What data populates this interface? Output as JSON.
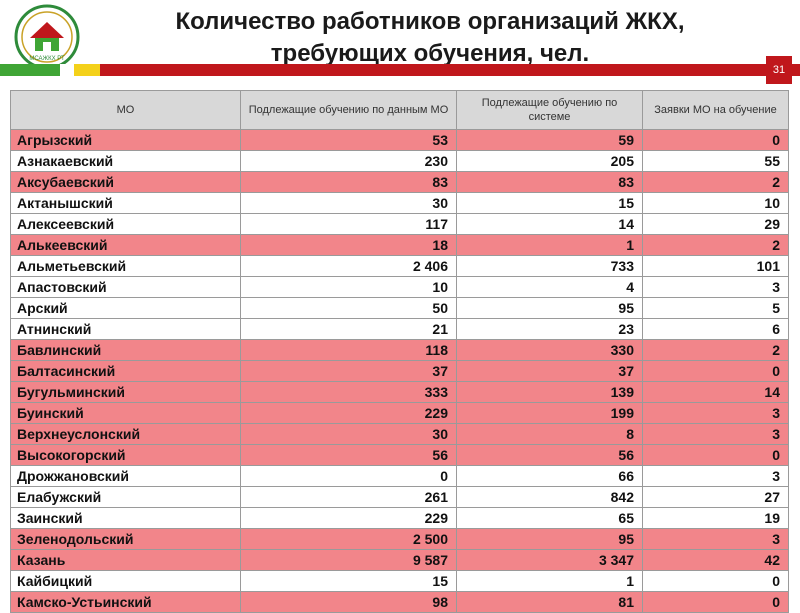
{
  "header": {
    "title_line1": "Количество работников организаций ЖКХ,",
    "title_line2": "требующих обучения, чел.",
    "logo_text": "МСАЖКХ РТ",
    "page_number": "31"
  },
  "colors": {
    "highlight_row": "#f2858a",
    "brand_red": "#c0171c",
    "brand_green": "#3fa535",
    "brand_yellow": "#f4d11a",
    "header_bg": "#d8d8d8"
  },
  "table": {
    "columns": [
      "МО",
      "Подлежащие обучению по данным МО",
      "Подлежащие обучению по системе",
      "Заявки МО на обучение"
    ],
    "rows": [
      {
        "name": "Агрызский",
        "mo": "53",
        "system": "59",
        "requests": "0",
        "highlight": true
      },
      {
        "name": "Азнакаевский",
        "mo": "230",
        "system": "205",
        "requests": "55",
        "highlight": false
      },
      {
        "name": "Аксубаевский",
        "mo": "83",
        "system": "83",
        "requests": "2",
        "highlight": true
      },
      {
        "name": "Актанышский",
        "mo": "30",
        "system": "15",
        "requests": "10",
        "highlight": false
      },
      {
        "name": "Алексеевский",
        "mo": "117",
        "system": "14",
        "requests": "29",
        "highlight": false
      },
      {
        "name": "Алькеевский",
        "mo": "18",
        "system": "1",
        "requests": "2",
        "highlight": true
      },
      {
        "name": "Альметьевский",
        "mo": "2 406",
        "system": "733",
        "requests": "101",
        "highlight": false
      },
      {
        "name": "Апастовский",
        "mo": "10",
        "system": "4",
        "requests": "3",
        "highlight": false
      },
      {
        "name": "Арский",
        "mo": "50",
        "system": "95",
        "requests": "5",
        "highlight": false
      },
      {
        "name": "Атнинский",
        "mo": "21",
        "system": "23",
        "requests": "6",
        "highlight": false
      },
      {
        "name": "Бавлинский",
        "mo": "118",
        "system": "330",
        "requests": "2",
        "highlight": true
      },
      {
        "name": "Балтасинский",
        "mo": "37",
        "system": "37",
        "requests": "0",
        "highlight": true
      },
      {
        "name": "Бугульминский",
        "mo": "333",
        "system": "139",
        "requests": "14",
        "highlight": true
      },
      {
        "name": "Буинский",
        "mo": "229",
        "system": "199",
        "requests": "3",
        "highlight": true
      },
      {
        "name": "Верхнеуслонский",
        "mo": "30",
        "system": "8",
        "requests": "3",
        "highlight": true
      },
      {
        "name": "Высокогорский",
        "mo": "56",
        "system": "56",
        "requests": "0",
        "highlight": true
      },
      {
        "name": "Дрожжановский",
        "mo": "0",
        "system": "66",
        "requests": "3",
        "highlight": false
      },
      {
        "name": "Елабужский",
        "mo": "261",
        "system": "842",
        "requests": "27",
        "highlight": false
      },
      {
        "name": "Заинский",
        "mo": "229",
        "system": "65",
        "requests": "19",
        "highlight": false
      },
      {
        "name": "Зеленодольский",
        "mo": "2 500",
        "system": "95",
        "requests": "3",
        "highlight": true
      },
      {
        "name": "Казань",
        "mo": "9 587",
        "system": "3 347",
        "requests": "42",
        "highlight": true
      },
      {
        "name": "Кайбицкий",
        "mo": "15",
        "system": "1",
        "requests": "0",
        "highlight": false
      },
      {
        "name": "Камско-Устьинский",
        "mo": "98",
        "system": "81",
        "requests": "0",
        "highlight": true
      }
    ]
  }
}
